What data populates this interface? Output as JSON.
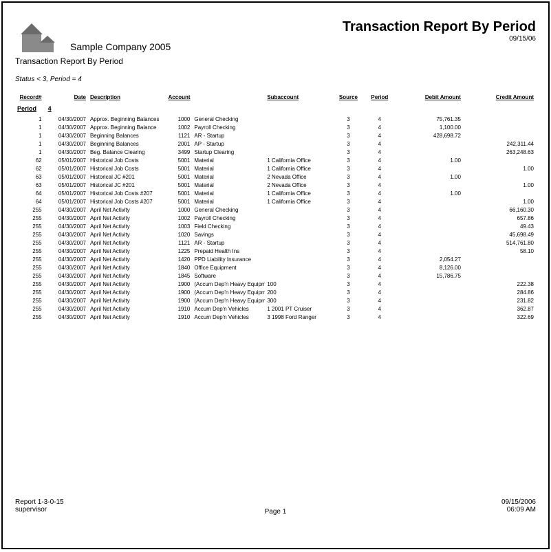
{
  "header": {
    "company_name": "Sample Company 2005",
    "title": "Transaction Report By Period",
    "title_date": "09/15/06",
    "subtitle": "Transaction Report By Period",
    "filter_text": "Status < 3, Period = 4"
  },
  "columns": {
    "record": "Record#",
    "date": "Date",
    "description": "Description",
    "account": "Account",
    "subaccount": "Subaccount",
    "source": "Source",
    "period": "Period",
    "debit": "Debit Amount",
    "credit": "Credit Amount"
  },
  "col_widths_pct": [
    5.5,
    8.5,
    15,
    5,
    14,
    13,
    6,
    6,
    13,
    14
  ],
  "period_label": "Period",
  "period_value": "4",
  "rows": [
    {
      "rec": "1",
      "date": "04/30/2007",
      "desc": "Approx. Beginning Balances",
      "acct": "1000",
      "acctname": "General Checking",
      "sub": "",
      "src": "3",
      "per": "4",
      "debit": "75,761.35",
      "credit": ""
    },
    {
      "rec": "1",
      "date": "04/30/2007",
      "desc": "Approx. Beginning Balance",
      "acct": "1002",
      "acctname": "Payroll Checking",
      "sub": "",
      "src": "3",
      "per": "4",
      "debit": "1,100.00",
      "credit": ""
    },
    {
      "rec": "1",
      "date": "04/30/2007",
      "desc": "Beginning Balances",
      "acct": "1121",
      "acctname": "AR - Startup",
      "sub": "",
      "src": "3",
      "per": "4",
      "debit": "428,698.72",
      "credit": ""
    },
    {
      "rec": "1",
      "date": "04/30/2007",
      "desc": "Beginning Balances",
      "acct": "2001",
      "acctname": "AP - Startup",
      "sub": "",
      "src": "3",
      "per": "4",
      "debit": "",
      "credit": "242,311.44"
    },
    {
      "rec": "1",
      "date": "04/30/2007",
      "desc": "Beg. Balance Clearing",
      "acct": "3499",
      "acctname": "Startup Clearing",
      "sub": "",
      "src": "3",
      "per": "4",
      "debit": "",
      "credit": "263,248.63"
    },
    {
      "rec": "62",
      "date": "05/01/2007",
      "desc": "Historical Job Costs",
      "acct": "5001",
      "acctname": "Material",
      "sub": "1 California Office",
      "src": "3",
      "per": "4",
      "debit": "1.00",
      "credit": ""
    },
    {
      "rec": "62",
      "date": "05/01/2007",
      "desc": "Historical Job Costs",
      "acct": "5001",
      "acctname": "Material",
      "sub": "1 California Office",
      "src": "3",
      "per": "4",
      "debit": "",
      "credit": "1.00"
    },
    {
      "rec": "63",
      "date": "05/01/2007",
      "desc": "Historical JC #201",
      "acct": "5001",
      "acctname": "Material",
      "sub": "2 Nevada Office",
      "src": "3",
      "per": "4",
      "debit": "1.00",
      "credit": ""
    },
    {
      "rec": "63",
      "date": "05/01/2007",
      "desc": "Historical JC #201",
      "acct": "5001",
      "acctname": "Material",
      "sub": "2 Nevada Office",
      "src": "3",
      "per": "4",
      "debit": "",
      "credit": "1.00"
    },
    {
      "rec": "64",
      "date": "05/01/2007",
      "desc": "Historical Job Costs #207",
      "acct": "5001",
      "acctname": "Material",
      "sub": "1 California Office",
      "src": "3",
      "per": "4",
      "debit": "1.00",
      "credit": ""
    },
    {
      "rec": "64",
      "date": "05/01/2007",
      "desc": "Historical Job Costs #207",
      "acct": "5001",
      "acctname": "Material",
      "sub": "1 California Office",
      "src": "3",
      "per": "4",
      "debit": "",
      "credit": "1.00"
    },
    {
      "rec": "255",
      "date": "04/30/2007",
      "desc": "April Net Activity",
      "acct": "1000",
      "acctname": "General Checking",
      "sub": "",
      "src": "3",
      "per": "4",
      "debit": "",
      "credit": "66,160.30"
    },
    {
      "rec": "255",
      "date": "04/30/2007",
      "desc": "April Net Activity",
      "acct": "1002",
      "acctname": "Payroll Checking",
      "sub": "",
      "src": "3",
      "per": "4",
      "debit": "",
      "credit": "657.86"
    },
    {
      "rec": "255",
      "date": "04/30/2007",
      "desc": "April Net Activity",
      "acct": "1003",
      "acctname": "Field Checking",
      "sub": "",
      "src": "3",
      "per": "4",
      "debit": "",
      "credit": "49.43"
    },
    {
      "rec": "255",
      "date": "04/30/2007",
      "desc": "April Net Activity",
      "acct": "1020",
      "acctname": "Savings",
      "sub": "",
      "src": "3",
      "per": "4",
      "debit": "",
      "credit": "45,698.49"
    },
    {
      "rec": "255",
      "date": "04/30/2007",
      "desc": "April Net Activity",
      "acct": "1121",
      "acctname": "AR - Startup",
      "sub": "",
      "src": "3",
      "per": "4",
      "debit": "",
      "credit": "514,761.80"
    },
    {
      "rec": "255",
      "date": "04/30/2007",
      "desc": "April Net Activity",
      "acct": "1225",
      "acctname": "Prepaid Health Ins",
      "sub": "",
      "src": "3",
      "per": "4",
      "debit": "",
      "credit": "58.10"
    },
    {
      "rec": "255",
      "date": "04/30/2007",
      "desc": "April Net Activity",
      "acct": "1420",
      "acctname": "PPD  Liability Insurance",
      "sub": "",
      "src": "3",
      "per": "4",
      "debit": "2,054.27",
      "credit": ""
    },
    {
      "rec": "255",
      "date": "04/30/2007",
      "desc": "April Net Activity",
      "acct": "1840",
      "acctname": "Office Equipment",
      "sub": "",
      "src": "3",
      "per": "4",
      "debit": "8,126.00",
      "credit": ""
    },
    {
      "rec": "255",
      "date": "04/30/2007",
      "desc": "April Net Activity",
      "acct": "1845",
      "acctname": "Software",
      "sub": "",
      "src": "3",
      "per": "4",
      "debit": "15,786.75",
      "credit": ""
    },
    {
      "rec": "255",
      "date": "04/30/2007",
      "desc": "April Net Activity",
      "acct": "1900",
      "acctname": "(Accum Dep'n Heavy Equipm",
      "sub": "100",
      "src": "3",
      "per": "4",
      "debit": "",
      "credit": "222.38"
    },
    {
      "rec": "255",
      "date": "04/30/2007",
      "desc": "April Net Activity",
      "acct": "1900",
      "acctname": "(Accum Dep'n Heavy Equipm",
      "sub": "200",
      "src": "3",
      "per": "4",
      "debit": "",
      "credit": "284.86"
    },
    {
      "rec": "255",
      "date": "04/30/2007",
      "desc": "April Net Activity",
      "acct": "1900",
      "acctname": "(Accum Dep'n Heavy Equipm",
      "sub": "300",
      "src": "3",
      "per": "4",
      "debit": "",
      "credit": "231.82"
    },
    {
      "rec": "255",
      "date": "04/30/2007",
      "desc": "April Net Activity",
      "acct": "1910",
      "acctname": "Accum Dep'n Vehicles",
      "sub": "1 2001 PT Cruiser",
      "src": "3",
      "per": "4",
      "debit": "",
      "credit": "362.87"
    },
    {
      "rec": "255",
      "date": "04/30/2007",
      "desc": "April Net Activity",
      "acct": "1910",
      "acctname": "Accum Dep'n Vehicles",
      "sub": "3 1998 Ford Ranger",
      "src": "3",
      "per": "4",
      "debit": "",
      "credit": "322.69"
    }
  ],
  "footer": {
    "report_id": "Report 1-3-0-15",
    "user": "supervisor",
    "page_label": "Page 1",
    "date": "09/15/2006",
    "time": "06:09 AM"
  },
  "logo_colors": {
    "wall": "#8a8a8a",
    "roof": "#6b6b6b"
  }
}
